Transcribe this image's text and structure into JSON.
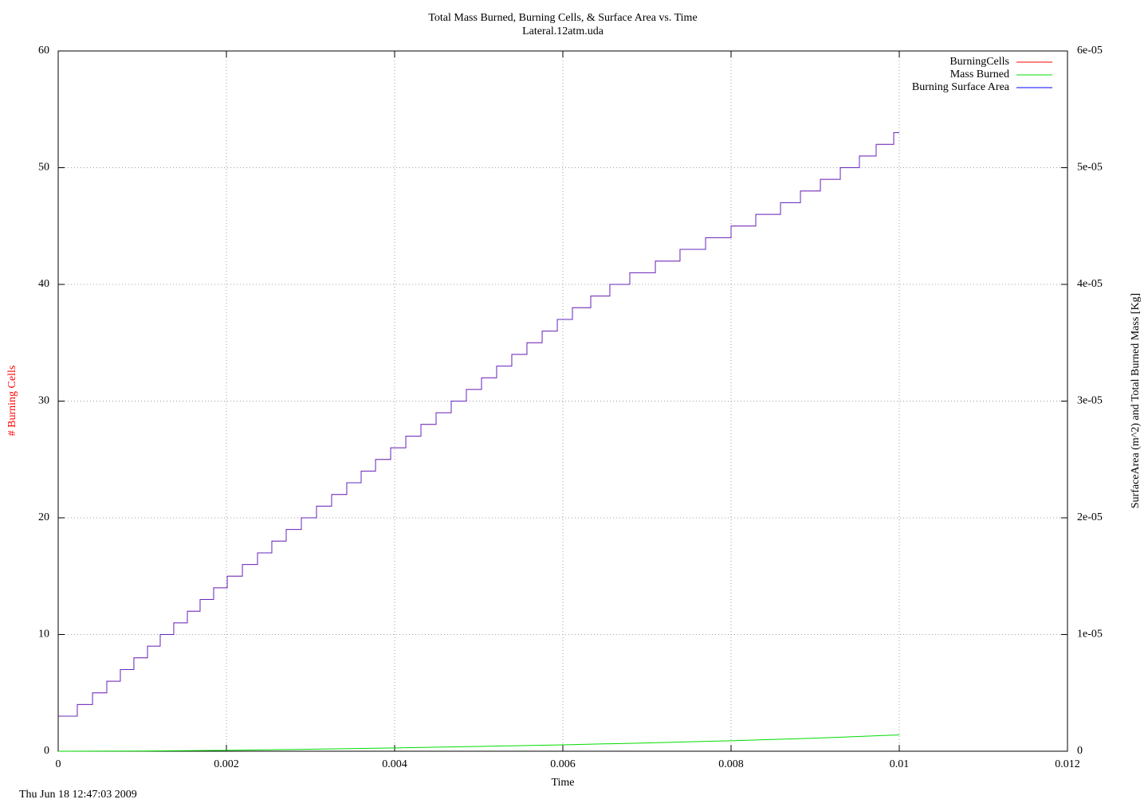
{
  "chart_data": {
    "type": "line",
    "title": "Total Mass Burned, Burning Cells, & Surface Area vs. Time",
    "subtitle": "Lateral.12atm.uda",
    "x_label": "Time",
    "y_label": "# Burning Cells",
    "y2_label": "SurfaceArea (m^2) and Total Burned Mass [Kg]",
    "timestamp": "Thu Jun 18 12:47:03 2009",
    "step": "post",
    "grid": true,
    "legend": "top-right",
    "xlim": [
      0,
      0.012
    ],
    "xticks": [
      0,
      0.002,
      0.004,
      0.006,
      0.008,
      0.01,
      0.012
    ],
    "ylim": [
      0,
      60
    ],
    "yticks": [
      0,
      10,
      20,
      30,
      40,
      50,
      60
    ],
    "y2lim": [
      0,
      6e-05
    ],
    "y2ticks": [
      0,
      {
        "value": 1e-05,
        "label": "1e-05"
      },
      {
        "value": 2e-05,
        "label": "2e-05"
      },
      {
        "value": 3e-05,
        "label": "3e-05"
      },
      {
        "value": 4e-05,
        "label": "4e-05"
      },
      {
        "value": 5e-05,
        "label": "5e-05"
      },
      {
        "value": 6e-05,
        "label": "6e-05"
      }
    ],
    "series": [
      {
        "name": "BurningCells",
        "color": "#ff0000",
        "stepped": true,
        "x": [
          0,
          0.000227,
          0.000408,
          0.000578,
          0.000739,
          0.0009,
          0.001062,
          0.001213,
          0.001374,
          0.001536,
          0.001687,
          0.001848,
          0.00201,
          0.00219,
          0.00237,
          0.00254,
          0.002711,
          0.002891,
          0.003071,
          0.003251,
          0.003431,
          0.003602,
          0.003773,
          0.003953,
          0.004133,
          0.004313,
          0.004493,
          0.004673,
          0.004853,
          0.005033,
          0.005213,
          0.005393,
          0.005573,
          0.005754,
          0.005934,
          0.006114,
          0.006332,
          0.006559,
          0.006796,
          0.0071,
          0.007393,
          0.007697,
          0.008,
          0.008294,
          0.008588,
          0.008825,
          0.009062,
          0.009299,
          0.009526,
          0.009725,
          0.009934,
          0.01
        ],
        "values": [
          3,
          4,
          5,
          6,
          7,
          8,
          9,
          10,
          11,
          12,
          13,
          14,
          15,
          16,
          17,
          18,
          19,
          20,
          21,
          22,
          23,
          24,
          25,
          26,
          27,
          28,
          29,
          30,
          31,
          32,
          33,
          34,
          35,
          36,
          37,
          38,
          39,
          40,
          41,
          42,
          43,
          44,
          45,
          46,
          47,
          48,
          49,
          50,
          51,
          52,
          53,
          53
        ]
      },
      {
        "name": "Mass Burned",
        "color": "#00dd00",
        "axis": "y2",
        "stepped": false,
        "x": [
          0,
          0.001,
          0.002,
          0.003,
          0.004,
          0.005,
          0.006,
          0.007,
          0.008,
          0.009,
          0.01
        ],
        "values": [
          0,
          2e-08,
          8e-08,
          1.7e-07,
          2.8e-07,
          4.1e-07,
          5.5e-07,
          7.1e-07,
          9e-07,
          1.12e-06,
          1.4e-06
        ]
      },
      {
        "name": "Burning Surface Area",
        "color": "#0000ff",
        "axis": "y2",
        "stepped": true,
        "x": [
          0,
          0.000227,
          0.000408,
          0.000578,
          0.000739,
          0.0009,
          0.001062,
          0.001213,
          0.001374,
          0.001536,
          0.001687,
          0.001848,
          0.00201,
          0.00219,
          0.00237,
          0.00254,
          0.002711,
          0.002891,
          0.003071,
          0.003251,
          0.003431,
          0.003602,
          0.003773,
          0.003953,
          0.004133,
          0.004313,
          0.004493,
          0.004673,
          0.004853,
          0.005033,
          0.005213,
          0.005393,
          0.005573,
          0.005754,
          0.005934,
          0.006114,
          0.006332,
          0.006559,
          0.006796,
          0.0071,
          0.007393,
          0.007697,
          0.008,
          0.008294,
          0.008588,
          0.008825,
          0.009062,
          0.009299,
          0.009526,
          0.009725,
          0.009934,
          0.01
        ],
        "values": [
          3e-06,
          4e-06,
          5e-06,
          6e-06,
          7e-06,
          8e-06,
          9e-06,
          1e-05,
          1.1e-05,
          1.2e-05,
          1.3e-05,
          1.4e-05,
          1.5e-05,
          1.6e-05,
          1.7e-05,
          1.8e-05,
          1.9e-05,
          2e-05,
          2.1e-05,
          2.2e-05,
          2.3e-05,
          2.4e-05,
          2.5e-05,
          2.6e-05,
          2.7e-05,
          2.8e-05,
          2.9e-05,
          3e-05,
          3.1e-05,
          3.2e-05,
          3.3e-05,
          3.4e-05,
          3.5e-05,
          3.6e-05,
          3.7e-05,
          3.8e-05,
          3.9e-05,
          4e-05,
          4.1e-05,
          4.2e-05,
          4.3e-05,
          4.4e-05,
          4.5e-05,
          4.6e-05,
          4.7e-05,
          4.8e-05,
          4.9e-05,
          5e-05,
          5.1e-05,
          5.2e-05,
          5.3e-05,
          5.3e-05
        ]
      }
    ]
  }
}
